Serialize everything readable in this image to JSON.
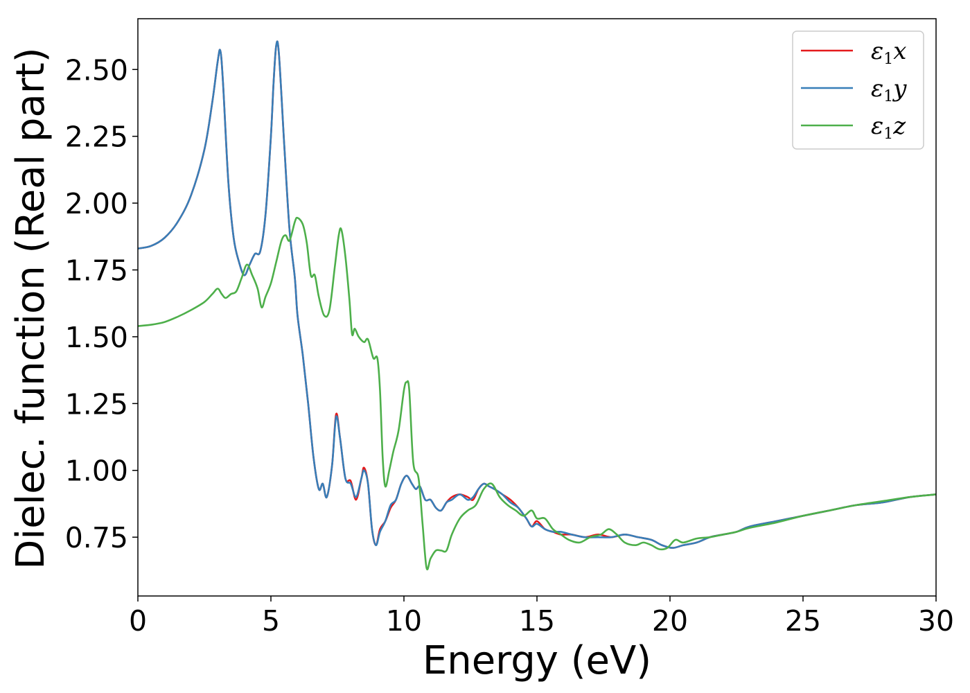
{
  "chart_data": {
    "type": "line",
    "title": "",
    "xlabel": "Energy (eV)",
    "ylabel": "Dielec. function (Real part)",
    "xlim": [
      0,
      30
    ],
    "ylim": [
      0.53,
      2.69
    ],
    "xticks": [
      0,
      5,
      10,
      15,
      20,
      25,
      30
    ],
    "xtick_labels": [
      "0",
      "5",
      "10",
      "15",
      "20",
      "25",
      "30"
    ],
    "yticks": [
      0.75,
      1.0,
      1.25,
      1.5,
      1.75,
      2.0,
      2.25,
      2.5
    ],
    "ytick_labels": [
      "0.75",
      "1.00",
      "1.25",
      "1.50",
      "1.75",
      "2.00",
      "2.25",
      "2.50"
    ],
    "grid": false,
    "legend_position": "top-right",
    "series": [
      {
        "name": "ε1x",
        "name_base": "ε",
        "name_sub": "1",
        "name_suffix": "x",
        "color": "#e41a1c",
        "points": [
          [
            0,
            1.83
          ],
          [
            0.5,
            1.84
          ],
          [
            1.0,
            1.87
          ],
          [
            1.5,
            1.93
          ],
          [
            2.0,
            2.03
          ],
          [
            2.5,
            2.2
          ],
          [
            2.8,
            2.38
          ],
          [
            3.0,
            2.53
          ],
          [
            3.1,
            2.57
          ],
          [
            3.2,
            2.45
          ],
          [
            3.4,
            2.08
          ],
          [
            3.6,
            1.87
          ],
          [
            3.8,
            1.78
          ],
          [
            4.0,
            1.73
          ],
          [
            4.2,
            1.77
          ],
          [
            4.4,
            1.81
          ],
          [
            4.6,
            1.82
          ],
          [
            4.8,
            1.96
          ],
          [
            5.0,
            2.25
          ],
          [
            5.1,
            2.45
          ],
          [
            5.2,
            2.59
          ],
          [
            5.3,
            2.56
          ],
          [
            5.5,
            2.22
          ],
          [
            5.7,
            1.9
          ],
          [
            5.9,
            1.72
          ],
          [
            6.0,
            1.58
          ],
          [
            6.2,
            1.43
          ],
          [
            6.4,
            1.25
          ],
          [
            6.6,
            1.05
          ],
          [
            6.8,
            0.93
          ],
          [
            6.95,
            0.95
          ],
          [
            7.1,
            0.9
          ],
          [
            7.3,
            1.02
          ],
          [
            7.45,
            1.21
          ],
          [
            7.6,
            1.12
          ],
          [
            7.8,
            0.97
          ],
          [
            8.0,
            0.96
          ],
          [
            8.2,
            0.89
          ],
          [
            8.4,
            0.97
          ],
          [
            8.5,
            1.01
          ],
          [
            8.65,
            0.95
          ],
          [
            8.8,
            0.78
          ],
          [
            8.95,
            0.72
          ],
          [
            9.1,
            0.78
          ],
          [
            9.3,
            0.81
          ],
          [
            9.5,
            0.86
          ],
          [
            9.7,
            0.89
          ],
          [
            9.9,
            0.95
          ],
          [
            10.1,
            0.98
          ],
          [
            10.3,
            0.95
          ],
          [
            10.45,
            0.93
          ],
          [
            10.6,
            0.94
          ],
          [
            10.8,
            0.89
          ],
          [
            11.0,
            0.89
          ],
          [
            11.2,
            0.86
          ],
          [
            11.4,
            0.85
          ],
          [
            11.6,
            0.88
          ],
          [
            11.8,
            0.9
          ],
          [
            12.1,
            0.91
          ],
          [
            12.4,
            0.9
          ],
          [
            12.6,
            0.89
          ],
          [
            12.8,
            0.93
          ],
          [
            13.0,
            0.95
          ],
          [
            13.2,
            0.94
          ],
          [
            13.4,
            0.93
          ],
          [
            13.7,
            0.91
          ],
          [
            14.0,
            0.89
          ],
          [
            14.3,
            0.86
          ],
          [
            14.6,
            0.82
          ],
          [
            14.8,
            0.79
          ],
          [
            15.0,
            0.81
          ],
          [
            15.3,
            0.78
          ],
          [
            15.6,
            0.77
          ],
          [
            15.9,
            0.76
          ],
          [
            16.3,
            0.76
          ],
          [
            16.8,
            0.75
          ],
          [
            17.3,
            0.76
          ],
          [
            17.8,
            0.75
          ],
          [
            18.3,
            0.76
          ],
          [
            18.8,
            0.75
          ],
          [
            19.3,
            0.74
          ],
          [
            19.7,
            0.72
          ],
          [
            20.1,
            0.71
          ],
          [
            20.5,
            0.72
          ],
          [
            21.0,
            0.73
          ],
          [
            21.5,
            0.75
          ],
          [
            22.0,
            0.76
          ],
          [
            22.5,
            0.77
          ],
          [
            23.0,
            0.79
          ],
          [
            24.0,
            0.81
          ],
          [
            25.0,
            0.83
          ],
          [
            26.0,
            0.85
          ],
          [
            27.0,
            0.87
          ],
          [
            28.0,
            0.88
          ],
          [
            29.0,
            0.9
          ],
          [
            30.0,
            0.91
          ]
        ]
      },
      {
        "name": "ε1y",
        "name_base": "ε",
        "name_sub": "1",
        "name_suffix": "y",
        "color": "#377eb8",
        "points": [
          [
            0,
            1.83
          ],
          [
            0.5,
            1.84
          ],
          [
            1.0,
            1.87
          ],
          [
            1.5,
            1.93
          ],
          [
            2.0,
            2.03
          ],
          [
            2.5,
            2.2
          ],
          [
            2.8,
            2.38
          ],
          [
            3.0,
            2.53
          ],
          [
            3.1,
            2.57
          ],
          [
            3.2,
            2.45
          ],
          [
            3.4,
            2.08
          ],
          [
            3.6,
            1.87
          ],
          [
            3.8,
            1.78
          ],
          [
            4.0,
            1.73
          ],
          [
            4.2,
            1.77
          ],
          [
            4.4,
            1.81
          ],
          [
            4.6,
            1.82
          ],
          [
            4.8,
            1.96
          ],
          [
            5.0,
            2.25
          ],
          [
            5.1,
            2.45
          ],
          [
            5.2,
            2.59
          ],
          [
            5.3,
            2.56
          ],
          [
            5.5,
            2.22
          ],
          [
            5.7,
            1.9
          ],
          [
            5.9,
            1.72
          ],
          [
            6.0,
            1.58
          ],
          [
            6.2,
            1.43
          ],
          [
            6.4,
            1.25
          ],
          [
            6.6,
            1.05
          ],
          [
            6.8,
            0.93
          ],
          [
            6.95,
            0.95
          ],
          [
            7.1,
            0.9
          ],
          [
            7.3,
            1.02
          ],
          [
            7.45,
            1.2
          ],
          [
            7.6,
            1.12
          ],
          [
            7.8,
            0.97
          ],
          [
            8.0,
            0.95
          ],
          [
            8.2,
            0.9
          ],
          [
            8.4,
            0.97
          ],
          [
            8.5,
            1.0
          ],
          [
            8.65,
            0.95
          ],
          [
            8.8,
            0.78
          ],
          [
            8.95,
            0.72
          ],
          [
            9.1,
            0.77
          ],
          [
            9.3,
            0.81
          ],
          [
            9.5,
            0.87
          ],
          [
            9.7,
            0.89
          ],
          [
            9.9,
            0.95
          ],
          [
            10.1,
            0.98
          ],
          [
            10.3,
            0.95
          ],
          [
            10.45,
            0.93
          ],
          [
            10.6,
            0.94
          ],
          [
            10.8,
            0.89
          ],
          [
            11.0,
            0.89
          ],
          [
            11.2,
            0.86
          ],
          [
            11.4,
            0.85
          ],
          [
            11.6,
            0.88
          ],
          [
            11.8,
            0.89
          ],
          [
            12.1,
            0.91
          ],
          [
            12.4,
            0.89
          ],
          [
            12.6,
            0.9
          ],
          [
            12.8,
            0.93
          ],
          [
            13.0,
            0.95
          ],
          [
            13.2,
            0.94
          ],
          [
            13.4,
            0.93
          ],
          [
            13.7,
            0.91
          ],
          [
            14.0,
            0.88
          ],
          [
            14.3,
            0.86
          ],
          [
            14.6,
            0.82
          ],
          [
            14.8,
            0.79
          ],
          [
            15.0,
            0.8
          ],
          [
            15.3,
            0.78
          ],
          [
            15.6,
            0.77
          ],
          [
            15.9,
            0.77
          ],
          [
            16.3,
            0.76
          ],
          [
            16.8,
            0.75
          ],
          [
            17.3,
            0.75
          ],
          [
            17.8,
            0.75
          ],
          [
            18.3,
            0.76
          ],
          [
            18.8,
            0.75
          ],
          [
            19.3,
            0.74
          ],
          [
            19.7,
            0.72
          ],
          [
            20.1,
            0.71
          ],
          [
            20.5,
            0.72
          ],
          [
            21.0,
            0.73
          ],
          [
            21.5,
            0.75
          ],
          [
            22.0,
            0.76
          ],
          [
            22.5,
            0.77
          ],
          [
            23.0,
            0.79
          ],
          [
            24.0,
            0.81
          ],
          [
            25.0,
            0.83
          ],
          [
            26.0,
            0.85
          ],
          [
            27.0,
            0.87
          ],
          [
            28.0,
            0.88
          ],
          [
            29.0,
            0.9
          ],
          [
            30.0,
            0.91
          ]
        ]
      },
      {
        "name": "ε1z",
        "name_base": "ε",
        "name_sub": "1",
        "name_suffix": "z",
        "color": "#4daf4a",
        "points": [
          [
            0,
            1.54
          ],
          [
            0.5,
            1.545
          ],
          [
            1.0,
            1.555
          ],
          [
            1.5,
            1.575
          ],
          [
            2.0,
            1.6
          ],
          [
            2.5,
            1.63
          ],
          [
            2.8,
            1.66
          ],
          [
            3.0,
            1.68
          ],
          [
            3.15,
            1.66
          ],
          [
            3.3,
            1.645
          ],
          [
            3.5,
            1.66
          ],
          [
            3.7,
            1.67
          ],
          [
            3.9,
            1.72
          ],
          [
            4.1,
            1.77
          ],
          [
            4.3,
            1.73
          ],
          [
            4.5,
            1.68
          ],
          [
            4.65,
            1.61
          ],
          [
            4.8,
            1.65
          ],
          [
            5.0,
            1.7
          ],
          [
            5.2,
            1.78
          ],
          [
            5.4,
            1.86
          ],
          [
            5.55,
            1.88
          ],
          [
            5.7,
            1.86
          ],
          [
            5.9,
            1.93
          ],
          [
            6.0,
            1.945
          ],
          [
            6.2,
            1.92
          ],
          [
            6.35,
            1.85
          ],
          [
            6.5,
            1.73
          ],
          [
            6.65,
            1.73
          ],
          [
            6.8,
            1.65
          ],
          [
            7.0,
            1.58
          ],
          [
            7.2,
            1.6
          ],
          [
            7.4,
            1.76
          ],
          [
            7.55,
            1.88
          ],
          [
            7.65,
            1.9
          ],
          [
            7.8,
            1.8
          ],
          [
            7.95,
            1.64
          ],
          [
            8.05,
            1.51
          ],
          [
            8.15,
            1.53
          ],
          [
            8.3,
            1.5
          ],
          [
            8.5,
            1.48
          ],
          [
            8.65,
            1.49
          ],
          [
            8.85,
            1.42
          ],
          [
            9.0,
            1.42
          ],
          [
            9.1,
            1.3
          ],
          [
            9.2,
            1.05
          ],
          [
            9.3,
            0.94
          ],
          [
            9.45,
            1.0
          ],
          [
            9.6,
            1.07
          ],
          [
            9.8,
            1.15
          ],
          [
            10.0,
            1.3
          ],
          [
            10.1,
            1.33
          ],
          [
            10.2,
            1.3
          ],
          [
            10.35,
            1.03
          ],
          [
            10.55,
            0.97
          ],
          [
            10.7,
            0.8
          ],
          [
            10.85,
            0.635
          ],
          [
            11.0,
            0.67
          ],
          [
            11.2,
            0.7
          ],
          [
            11.4,
            0.7
          ],
          [
            11.6,
            0.7
          ],
          [
            11.8,
            0.76
          ],
          [
            12.1,
            0.82
          ],
          [
            12.4,
            0.85
          ],
          [
            12.7,
            0.87
          ],
          [
            13.0,
            0.93
          ],
          [
            13.3,
            0.95
          ],
          [
            13.6,
            0.9
          ],
          [
            13.9,
            0.87
          ],
          [
            14.2,
            0.85
          ],
          [
            14.5,
            0.83
          ],
          [
            14.8,
            0.85
          ],
          [
            15.0,
            0.82
          ],
          [
            15.3,
            0.82
          ],
          [
            15.6,
            0.78
          ],
          [
            15.9,
            0.76
          ],
          [
            16.2,
            0.74
          ],
          [
            16.6,
            0.73
          ],
          [
            17.0,
            0.75
          ],
          [
            17.4,
            0.76
          ],
          [
            17.7,
            0.78
          ],
          [
            18.0,
            0.76
          ],
          [
            18.3,
            0.73
          ],
          [
            18.7,
            0.72
          ],
          [
            19.0,
            0.73
          ],
          [
            19.3,
            0.72
          ],
          [
            19.6,
            0.705
          ],
          [
            19.9,
            0.71
          ],
          [
            20.2,
            0.74
          ],
          [
            20.5,
            0.73
          ],
          [
            21.0,
            0.745
          ],
          [
            21.5,
            0.75
          ],
          [
            22.0,
            0.76
          ],
          [
            22.5,
            0.77
          ],
          [
            23.0,
            0.785
          ],
          [
            24.0,
            0.805
          ],
          [
            25.0,
            0.83
          ],
          [
            26.0,
            0.85
          ],
          [
            27.0,
            0.87
          ],
          [
            28.0,
            0.885
          ],
          [
            29.0,
            0.9
          ],
          [
            30.0,
            0.91
          ]
        ]
      }
    ]
  }
}
